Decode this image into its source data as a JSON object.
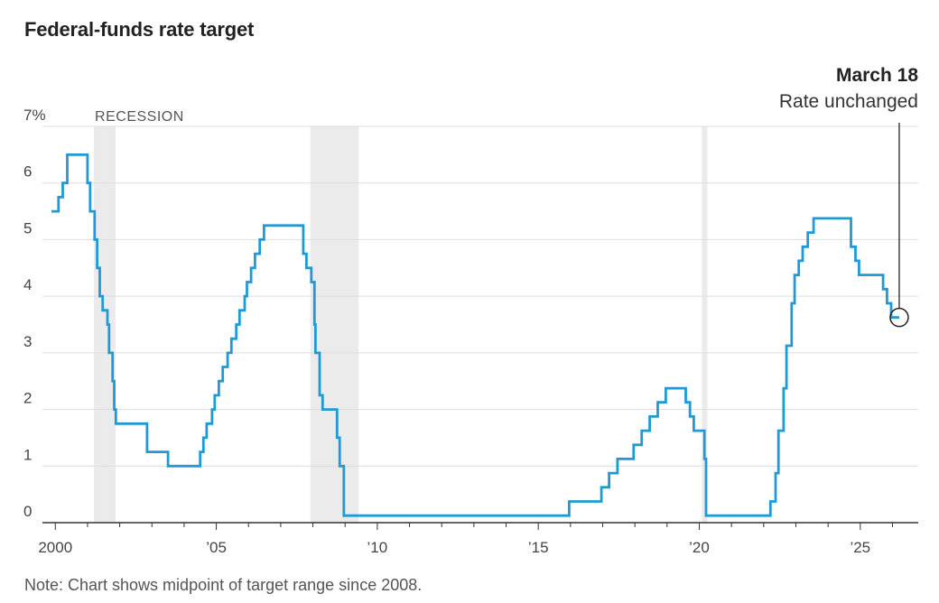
{
  "header": {
    "title": "Federal-funds rate target"
  },
  "footer": {
    "note": "Note: Chart shows midpoint of target range since 2008."
  },
  "annotation": {
    "date": "March 18",
    "text": "Rate unchanged",
    "x": 2026.21,
    "y": 3.625
  },
  "colors": {
    "line": "#1f9ad6",
    "recession": "#ebebeb",
    "grid": "#dddddd",
    "axis": "#333333"
  },
  "chart_data": {
    "type": "line",
    "title": "Federal-funds rate target",
    "xlabel": "",
    "ylabel": "",
    "xlim": [
      1999.6,
      2026.8
    ],
    "ylim": [
      0,
      7
    ],
    "grid": true,
    "y_ticks": [
      {
        "value": 0,
        "label": "0"
      },
      {
        "value": 1,
        "label": "1"
      },
      {
        "value": 2,
        "label": "2"
      },
      {
        "value": 3,
        "label": "3"
      },
      {
        "value": 4,
        "label": "4"
      },
      {
        "value": 5,
        "label": "5"
      },
      {
        "value": 6,
        "label": "6"
      },
      {
        "value": 7,
        "label": "7%"
      }
    ],
    "x_ticks": [
      {
        "value": 2000,
        "label": "2000"
      },
      {
        "value": 2005,
        "label": "’05"
      },
      {
        "value": 2010,
        "label": "’10"
      },
      {
        "value": 2015,
        "label": "’15"
      },
      {
        "value": 2020,
        "label": "’20"
      },
      {
        "value": 2025,
        "label": "’25"
      }
    ],
    "recession_label": "RECESSION",
    "recessions": [
      [
        2001.2,
        2001.87
      ],
      [
        2007.92,
        2009.42
      ],
      [
        2020.08,
        2020.25
      ]
    ],
    "series": [
      {
        "name": "Federal-funds rate target",
        "step": true,
        "x": [
          1999.88,
          2000.1,
          2000.23,
          2000.37,
          2001.0,
          2001.08,
          2001.22,
          2001.3,
          2001.38,
          2001.47,
          2001.62,
          2001.67,
          2001.78,
          2001.83,
          2001.88,
          2002.0,
          2002.85,
          2003.5,
          2004.5,
          2004.6,
          2004.7,
          2004.87,
          2004.95,
          2005.08,
          2005.2,
          2005.35,
          2005.47,
          2005.62,
          2005.72,
          2005.88,
          2005.95,
          2006.08,
          2006.2,
          2006.35,
          2006.48,
          2007.7,
          2007.8,
          2007.95,
          2008.05,
          2008.08,
          2008.21,
          2008.3,
          2008.75,
          2008.83,
          2008.96,
          2015.96,
          2016.96,
          2017.2,
          2017.46,
          2017.96,
          2018.21,
          2018.46,
          2018.71,
          2018.96,
          2019.58,
          2019.71,
          2019.83,
          2020.16,
          2020.21,
          2022.21,
          2022.37,
          2022.46,
          2022.62,
          2022.71,
          2022.87,
          2022.96,
          2023.09,
          2023.21,
          2023.37,
          2023.55,
          2024.71,
          2024.85,
          2024.96,
          2025.71,
          2025.83,
          2025.96,
          2026.21
        ],
        "y": [
          5.5,
          5.75,
          6.0,
          6.5,
          6.0,
          5.5,
          5.0,
          4.5,
          4.0,
          3.75,
          3.5,
          3.0,
          2.5,
          2.0,
          1.75,
          1.75,
          1.25,
          1.0,
          1.25,
          1.5,
          1.75,
          2.0,
          2.25,
          2.5,
          2.75,
          3.0,
          3.25,
          3.5,
          3.75,
          4.0,
          4.25,
          4.5,
          4.75,
          5.0,
          5.25,
          4.75,
          4.5,
          4.25,
          3.5,
          3.0,
          2.25,
          2.0,
          1.5,
          1.0,
          0.125,
          0.375,
          0.625,
          0.875,
          1.125,
          1.375,
          1.625,
          1.875,
          2.125,
          2.375,
          2.125,
          1.875,
          1.625,
          1.125,
          0.125,
          0.375,
          0.875,
          1.625,
          2.375,
          3.125,
          3.875,
          4.375,
          4.625,
          4.875,
          5.125,
          5.375,
          4.875,
          4.625,
          4.375,
          4.125,
          3.875,
          3.625,
          3.625
        ]
      }
    ]
  }
}
